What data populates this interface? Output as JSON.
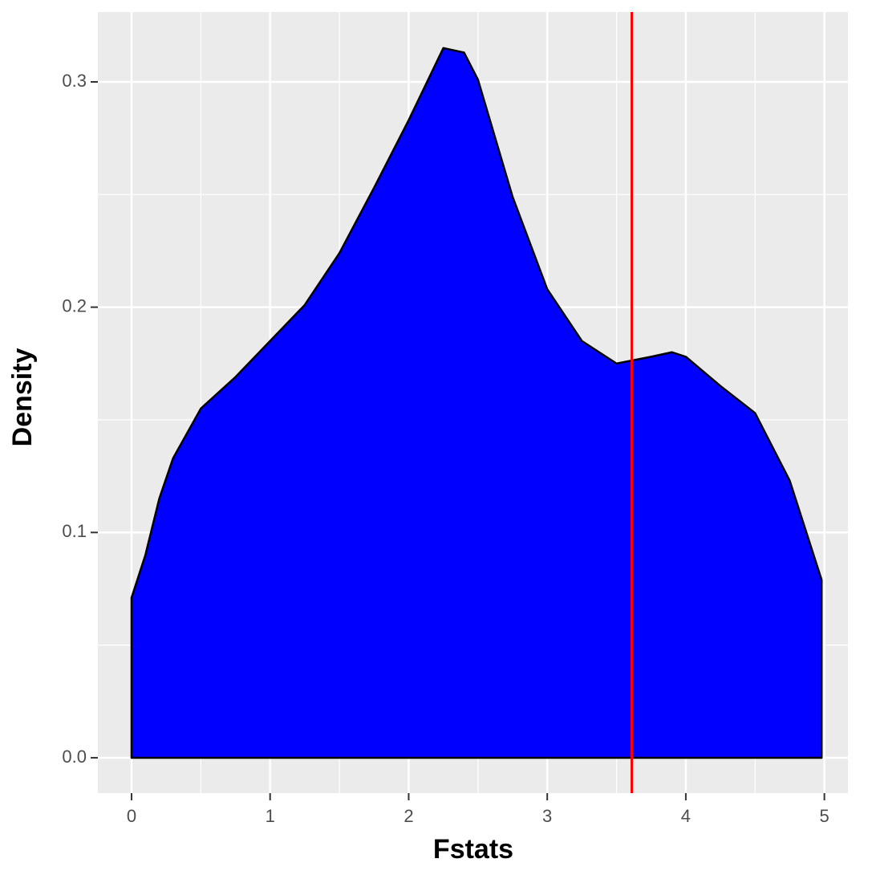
{
  "chart_data": {
    "type": "density",
    "x_label": "Fstats",
    "y_label": "Density",
    "x": [
      0,
      0.1,
      0.2,
      0.3,
      0.5,
      0.75,
      1.0,
      1.25,
      1.5,
      1.75,
      2.0,
      2.25,
      2.4,
      2.5,
      2.75,
      3.0,
      3.25,
      3.5,
      3.75,
      3.9,
      4.0,
      4.25,
      4.5,
      4.75,
      4.98
    ],
    "values": [
      0.071,
      0.09,
      0.115,
      0.133,
      0.155,
      0.169,
      0.185,
      0.201,
      0.224,
      0.253,
      0.283,
      0.315,
      0.313,
      0.301,
      0.249,
      0.208,
      0.185,
      0.175,
      0.178,
      0.18,
      0.178,
      0.165,
      0.153,
      0.123,
      0.079
    ],
    "color": "#0000ff",
    "line_color": "#000000",
    "vline": {
      "x": 3.61,
      "color": "#ff0000"
    },
    "xlim": [
      -0.243,
      5.17
    ],
    "ylim": [
      -0.0157,
      0.331
    ],
    "xticks": [
      0,
      1,
      2,
      3,
      4,
      5
    ],
    "yticks": [
      {
        "value": 0,
        "label": "0.0"
      },
      0.1,
      0.2,
      0.3
    ],
    "xminor": [
      0.5,
      1.5,
      2.5,
      3.5,
      4.5
    ],
    "yminor": [
      0.05,
      0.15,
      0.25
    ],
    "grid": true
  }
}
